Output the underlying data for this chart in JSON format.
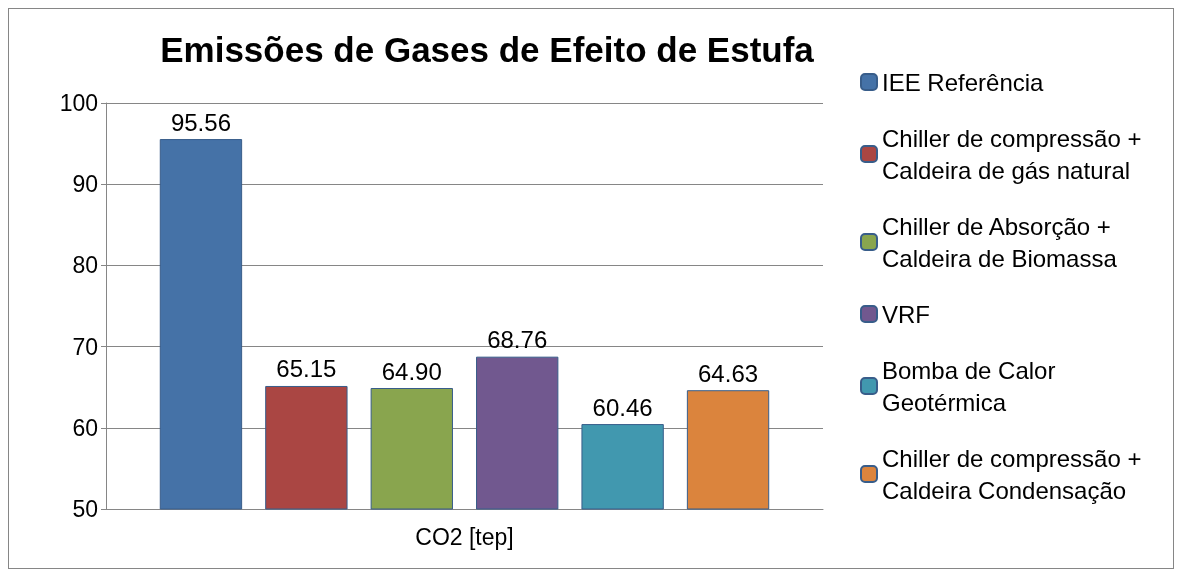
{
  "chart_data": {
    "type": "bar",
    "title": "Emissões de Gases de Efeito de Estufa",
    "categories": [
      "CO2 [tep]"
    ],
    "series": [
      {
        "name": "IEE Referência",
        "color": "#4572a7",
        "values": [
          95.56
        ],
        "value_labels": [
          "95.56"
        ]
      },
      {
        "name": "Chiller de compressão + Caldeira de gás natural",
        "color": "#aa4643",
        "values": [
          65.15
        ],
        "value_labels": [
          "65.15"
        ]
      },
      {
        "name": "Chiller de Absorção + Caldeira de Biomassa",
        "color": "#89a54e",
        "values": [
          64.9
        ],
        "value_labels": [
          "64.90"
        ]
      },
      {
        "name": "VRF",
        "color": "#71588f",
        "values": [
          68.76
        ],
        "value_labels": [
          "68.76"
        ]
      },
      {
        "name": "Bomba de Calor Geotérmica",
        "color": "#4198af",
        "values": [
          60.46
        ],
        "value_labels": [
          "60.46"
        ]
      },
      {
        "name": "Chiller de compressão + Caldeira Condensação",
        "color": "#db843d",
        "values": [
          64.63
        ],
        "value_labels": [
          "64.63"
        ]
      }
    ],
    "ylim": [
      50,
      100
    ],
    "yticks": [
      50,
      60,
      70,
      80,
      90,
      100
    ],
    "grid": "y",
    "legend": "right"
  }
}
